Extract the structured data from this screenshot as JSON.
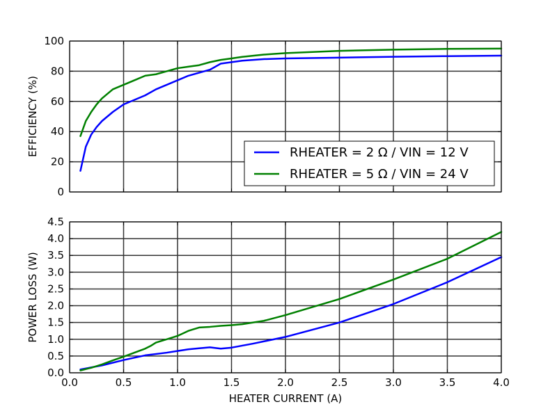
{
  "chart_data": [
    {
      "type": "line",
      "ylabel": "EFFICIENCY (%)",
      "xlabel": "",
      "xlim": [
        0,
        4
      ],
      "ylim": [
        0,
        100
      ],
      "xticks": [
        0.0,
        0.5,
        1.0,
        1.5,
        2.0,
        2.5,
        3.0,
        3.5,
        4.0
      ],
      "yticks": [
        "0",
        "20",
        "40",
        "60",
        "80",
        "100"
      ],
      "grid": true,
      "legend": "lower-right",
      "series": [
        {
          "name": "RHEATER = 2 Ω / VIN = 12 V",
          "color": "#0000ff",
          "x": [
            0.1,
            0.15,
            0.2,
            0.25,
            0.3,
            0.35,
            0.4,
            0.5,
            0.6,
            0.7,
            0.8,
            0.9,
            1.0,
            1.1,
            1.2,
            1.3,
            1.4,
            1.5,
            1.6,
            1.8,
            2.0,
            2.5,
            3.0,
            3.5,
            4.0
          ],
          "y": [
            14,
            30,
            38,
            43,
            47,
            50,
            53,
            58,
            61,
            64,
            68,
            71,
            74,
            77,
            79,
            81,
            85,
            86,
            87,
            88,
            88.5,
            89,
            89.6,
            90,
            90.3
          ]
        },
        {
          "name": "RHEATER = 5 Ω / VIN = 24 V",
          "color": "#008000",
          "x": [
            0.1,
            0.15,
            0.2,
            0.25,
            0.3,
            0.35,
            0.4,
            0.5,
            0.6,
            0.7,
            0.8,
            0.9,
            1.0,
            1.1,
            1.2,
            1.3,
            1.4,
            1.5,
            1.6,
            1.8,
            2.0,
            2.5,
            3.0,
            3.5,
            4.0
          ],
          "y": [
            37,
            47,
            53,
            58,
            62,
            65,
            68,
            71,
            74,
            77,
            78,
            80,
            82,
            83,
            84,
            86,
            87.5,
            88.5,
            89.5,
            91,
            92,
            93.5,
            94.3,
            94.8,
            95
          ]
        }
      ]
    },
    {
      "type": "line",
      "ylabel": "POWER LOSS (W)",
      "xlabel": "HEATER CURRENT (A)",
      "xlim": [
        0,
        4
      ],
      "ylim": [
        0,
        4.5
      ],
      "xticks": [
        "0.0",
        "0.5",
        "1.0",
        "1.5",
        "2.0",
        "2.5",
        "3.0",
        "3.5",
        "4.0"
      ],
      "yticks": [
        "0.0",
        "0.5",
        "1.0",
        "1.5",
        "2.0",
        "2.5",
        "3.0",
        "3.5",
        "4.0",
        "4.5"
      ],
      "grid": true,
      "series": [
        {
          "color": "#0000ff",
          "x": [
            0.1,
            0.3,
            0.5,
            0.7,
            0.9,
            1.1,
            1.2,
            1.3,
            1.4,
            1.5,
            1.7,
            2.0,
            2.5,
            3.0,
            3.5,
            4.0
          ],
          "y": [
            0.1,
            0.22,
            0.38,
            0.52,
            0.6,
            0.7,
            0.73,
            0.76,
            0.72,
            0.75,
            0.87,
            1.07,
            1.5,
            2.05,
            2.7,
            3.45
          ]
        },
        {
          "color": "#008000",
          "x": [
            0.1,
            0.2,
            0.3,
            0.4,
            0.5,
            0.6,
            0.7,
            0.75,
            0.8,
            0.9,
            1.0,
            1.1,
            1.2,
            1.3,
            1.4,
            1.5,
            1.6,
            1.8,
            2.0,
            2.5,
            3.0,
            3.5,
            4.0
          ],
          "y": [
            0.07,
            0.15,
            0.25,
            0.37,
            0.48,
            0.6,
            0.72,
            0.8,
            0.9,
            1.0,
            1.1,
            1.25,
            1.35,
            1.37,
            1.4,
            1.42,
            1.45,
            1.55,
            1.72,
            2.2,
            2.78,
            3.4,
            4.2
          ]
        }
      ]
    }
  ]
}
